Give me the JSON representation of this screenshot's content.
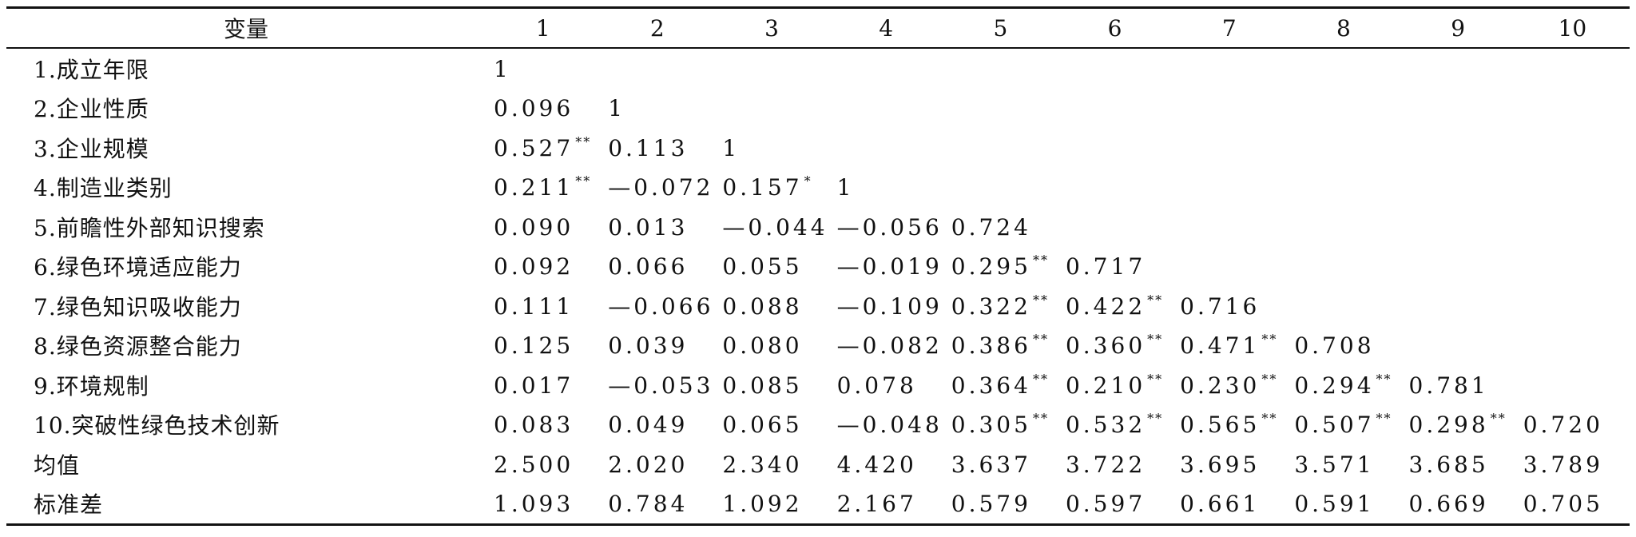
{
  "header": {
    "variable_label": "变量",
    "columns": [
      "1",
      "2",
      "3",
      "4",
      "5",
      "6",
      "7",
      "8",
      "9",
      "10"
    ]
  },
  "rows": [
    {
      "name": "1.成立年限",
      "cells": [
        [
          "1",
          ""
        ],
        [
          "",
          ""
        ],
        [
          "",
          ""
        ],
        [
          "",
          ""
        ],
        [
          "",
          ""
        ],
        [
          "",
          ""
        ],
        [
          "",
          ""
        ],
        [
          "",
          ""
        ],
        [
          "",
          ""
        ],
        [
          "",
          ""
        ]
      ]
    },
    {
      "name": "2.企业性质",
      "cells": [
        [
          "0.096",
          ""
        ],
        [
          "1",
          ""
        ],
        [
          "",
          ""
        ],
        [
          "",
          ""
        ],
        [
          "",
          ""
        ],
        [
          "",
          ""
        ],
        [
          "",
          ""
        ],
        [
          "",
          ""
        ],
        [
          "",
          ""
        ],
        [
          "",
          ""
        ]
      ]
    },
    {
      "name": "3.企业规模",
      "cells": [
        [
          "0.527",
          "**"
        ],
        [
          "0.113",
          ""
        ],
        [
          "1",
          ""
        ],
        [
          "",
          ""
        ],
        [
          "",
          ""
        ],
        [
          "",
          ""
        ],
        [
          "",
          ""
        ],
        [
          "",
          ""
        ],
        [
          "",
          ""
        ],
        [
          "",
          ""
        ]
      ]
    },
    {
      "name": "4.制造业类别",
      "cells": [
        [
          "0.211",
          "**"
        ],
        [
          "—0.072",
          ""
        ],
        [
          "0.157",
          "*"
        ],
        [
          "1",
          ""
        ],
        [
          "",
          ""
        ],
        [
          "",
          ""
        ],
        [
          "",
          ""
        ],
        [
          "",
          ""
        ],
        [
          "",
          ""
        ],
        [
          "",
          ""
        ]
      ]
    },
    {
      "name": "5.前瞻性外部知识搜索",
      "cells": [
        [
          "0.090",
          ""
        ],
        [
          "0.013",
          ""
        ],
        [
          "—0.044",
          ""
        ],
        [
          "—0.056",
          ""
        ],
        [
          "0.724",
          ""
        ],
        [
          "",
          ""
        ],
        [
          "",
          ""
        ],
        [
          "",
          ""
        ],
        [
          "",
          ""
        ],
        [
          "",
          ""
        ]
      ]
    },
    {
      "name": "6.绿色环境适应能力",
      "cells": [
        [
          "0.092",
          ""
        ],
        [
          "0.066",
          ""
        ],
        [
          "0.055",
          ""
        ],
        [
          "—0.019",
          ""
        ],
        [
          "0.295",
          "**"
        ],
        [
          "0.717",
          ""
        ],
        [
          "",
          ""
        ],
        [
          "",
          ""
        ],
        [
          "",
          ""
        ],
        [
          "",
          ""
        ]
      ]
    },
    {
      "name": "7.绿色知识吸收能力",
      "cells": [
        [
          "0.111",
          ""
        ],
        [
          "—0.066",
          ""
        ],
        [
          "0.088",
          ""
        ],
        [
          "—0.109",
          ""
        ],
        [
          "0.322",
          "**"
        ],
        [
          "0.422",
          "**"
        ],
        [
          "0.716",
          ""
        ],
        [
          "",
          ""
        ],
        [
          "",
          ""
        ],
        [
          "",
          ""
        ]
      ]
    },
    {
      "name": "8.绿色资源整合能力",
      "cells": [
        [
          "0.125",
          ""
        ],
        [
          "0.039",
          ""
        ],
        [
          "0.080",
          ""
        ],
        [
          "—0.082",
          ""
        ],
        [
          "0.386",
          "**"
        ],
        [
          "0.360",
          "**"
        ],
        [
          "0.471",
          "**"
        ],
        [
          "0.708",
          ""
        ],
        [
          "",
          ""
        ],
        [
          "",
          ""
        ]
      ]
    },
    {
      "name": "9.环境规制",
      "cells": [
        [
          "0.017",
          ""
        ],
        [
          "—0.053",
          ""
        ],
        [
          "0.085",
          ""
        ],
        [
          "0.078",
          ""
        ],
        [
          "0.364",
          "**"
        ],
        [
          "0.210",
          "**"
        ],
        [
          "0.230",
          "**"
        ],
        [
          "0.294",
          "**"
        ],
        [
          "0.781",
          ""
        ],
        [
          "",
          ""
        ]
      ]
    },
    {
      "name": "10.突破性绿色技术创新",
      "cells": [
        [
          "0.083",
          ""
        ],
        [
          "0.049",
          ""
        ],
        [
          "0.065",
          ""
        ],
        [
          "—0.048",
          ""
        ],
        [
          "0.305",
          "**"
        ],
        [
          "0.532",
          "**"
        ],
        [
          "0.565",
          "**"
        ],
        [
          "0.507",
          "**"
        ],
        [
          "0.298",
          "**"
        ],
        [
          "0.720",
          ""
        ]
      ]
    },
    {
      "name": "均值",
      "cells": [
        [
          "2.500",
          ""
        ],
        [
          "2.020",
          ""
        ],
        [
          "2.340",
          ""
        ],
        [
          "4.420",
          ""
        ],
        [
          "3.637",
          ""
        ],
        [
          "3.722",
          ""
        ],
        [
          "3.695",
          ""
        ],
        [
          "3.571",
          ""
        ],
        [
          "3.685",
          ""
        ],
        [
          "3.789",
          ""
        ]
      ]
    },
    {
      "name": "标准差",
      "cells": [
        [
          "1.093",
          ""
        ],
        [
          "0.784",
          ""
        ],
        [
          "1.092",
          ""
        ],
        [
          "2.167",
          ""
        ],
        [
          "0.579",
          ""
        ],
        [
          "0.597",
          ""
        ],
        [
          "0.661",
          ""
        ],
        [
          "0.591",
          ""
        ],
        [
          "0.669",
          ""
        ],
        [
          "0.705",
          ""
        ]
      ]
    }
  ]
}
